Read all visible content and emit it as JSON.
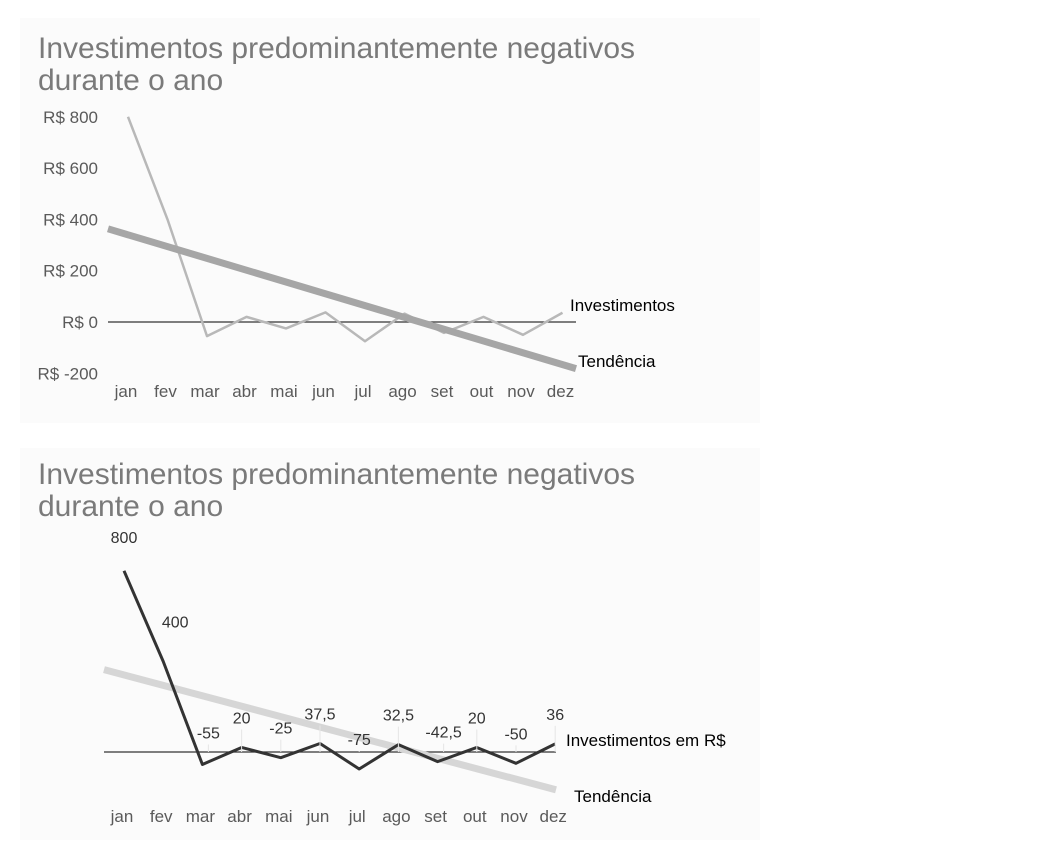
{
  "chart_data": [
    {
      "type": "line",
      "title_lines": [
        "Investimentos predominantemente negativos",
        "durante o ano"
      ],
      "categories": [
        "jan",
        "fev",
        "mar",
        "abr",
        "mai",
        "jun",
        "jul",
        "ago",
        "set",
        "out",
        "nov",
        "dez"
      ],
      "y_tick_labels": [
        "R$ 800",
        "R$ 600",
        "R$ 400",
        "R$ 200",
        "R$ 0",
        "R$ -200"
      ],
      "y_ticks": [
        800,
        600,
        400,
        200,
        0,
        -200
      ],
      "ylim": [
        -200,
        800
      ],
      "series": [
        {
          "name": "Investimentos",
          "values": [
            800,
            400,
            -55,
            20,
            -25,
            37.5,
            -75,
            32.5,
            -42.5,
            20,
            -50,
            36
          ],
          "color": "#b8b8b8"
        },
        {
          "name": "Tendência",
          "values": [
            340,
            294,
            248,
            202,
            156,
            110,
            64,
            18,
            -28,
            -74,
            -120,
            -166
          ],
          "color": "#a6a6a6",
          "trend": true
        }
      ],
      "data_labels": false,
      "grid": false
    },
    {
      "type": "line",
      "title_lines": [
        "Investimentos predominantemente negativos",
        "durante o ano"
      ],
      "categories": [
        "jan",
        "fev",
        "mar",
        "abr",
        "mai",
        "jun",
        "jul",
        "ago",
        "set",
        "out",
        "nov",
        "dez"
      ],
      "ylim": [
        -200,
        800
      ],
      "series": [
        {
          "name": "Investimentos em R$",
          "values": [
            800,
            400,
            -55,
            20,
            -25,
            37.5,
            -75,
            32.5,
            -42.5,
            20,
            -50,
            36
          ],
          "value_labels": [
            "800",
            "400",
            "-55",
            "20",
            "-25",
            "37,5",
            "-75",
            "32,5",
            "-42,5",
            "20",
            "-50",
            "36"
          ],
          "color": "#333333"
        },
        {
          "name": "Tendência",
          "values": [
            340,
            294,
            248,
            202,
            156,
            110,
            64,
            18,
            -28,
            -74,
            -120,
            -166
          ],
          "color": "#d6d6d6",
          "trend": true
        }
      ],
      "data_labels": true,
      "grid": false
    }
  ]
}
